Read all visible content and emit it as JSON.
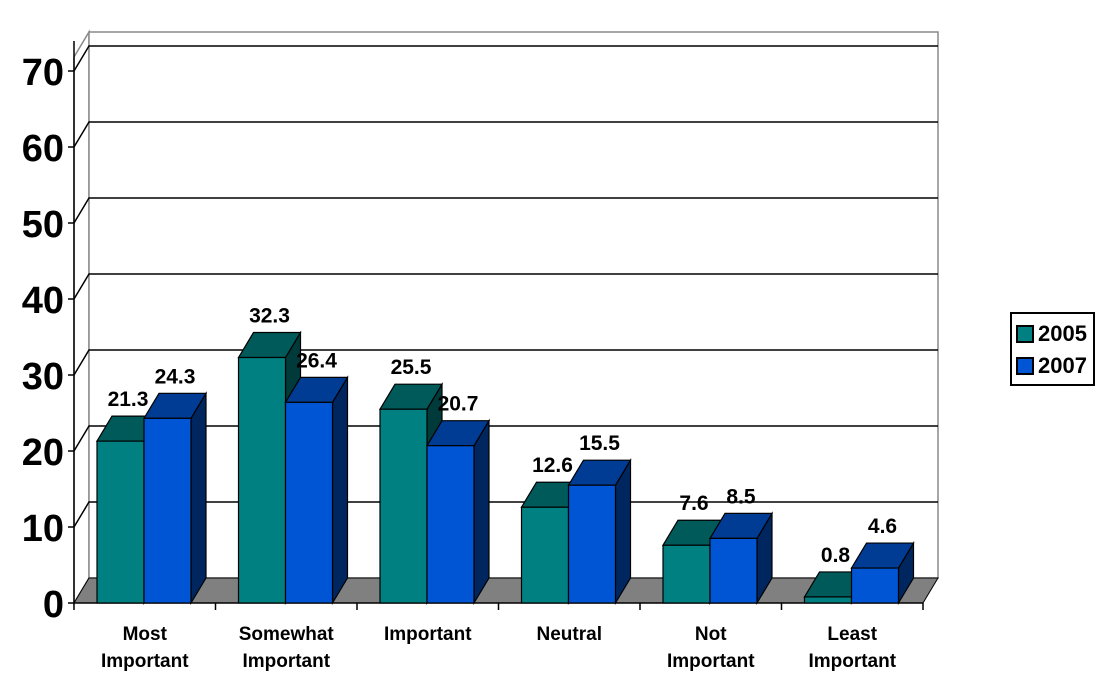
{
  "chart_data": {
    "type": "bar",
    "categories": [
      [
        "Most",
        "Important"
      ],
      [
        "Somewhat",
        "Important"
      ],
      [
        "Important"
      ],
      [
        "Neutral"
      ],
      [
        "Not",
        "Important"
      ],
      [
        "Least",
        "Important"
      ]
    ],
    "series": [
      {
        "name": "2005",
        "values": [
          21.3,
          32.3,
          25.5,
          12.6,
          7.6,
          0.8
        ],
        "color": "#008080"
      },
      {
        "name": "2007",
        "values": [
          24.3,
          26.4,
          20.7,
          15.5,
          8.5,
          4.6
        ],
        "color": "#0055D4"
      }
    ],
    "data_labels": [
      [
        "21.3",
        "32.3",
        "25.5",
        "12.6",
        "7.6",
        "0.8"
      ],
      [
        "24.3",
        "26.4",
        "20.7",
        "15.5",
        "8.5",
        "4.6"
      ]
    ],
    "yticks": [
      "0",
      "10",
      "20",
      "30",
      "40",
      "50",
      "60",
      "70"
    ],
    "ylim": [
      0,
      70
    ],
    "grid": true,
    "style": "3d-clustered-column",
    "legend_position": "right"
  },
  "legend": {
    "items": [
      {
        "label": "2005",
        "color": "#008080"
      },
      {
        "label": "2007",
        "color": "#0055D4"
      }
    ]
  }
}
